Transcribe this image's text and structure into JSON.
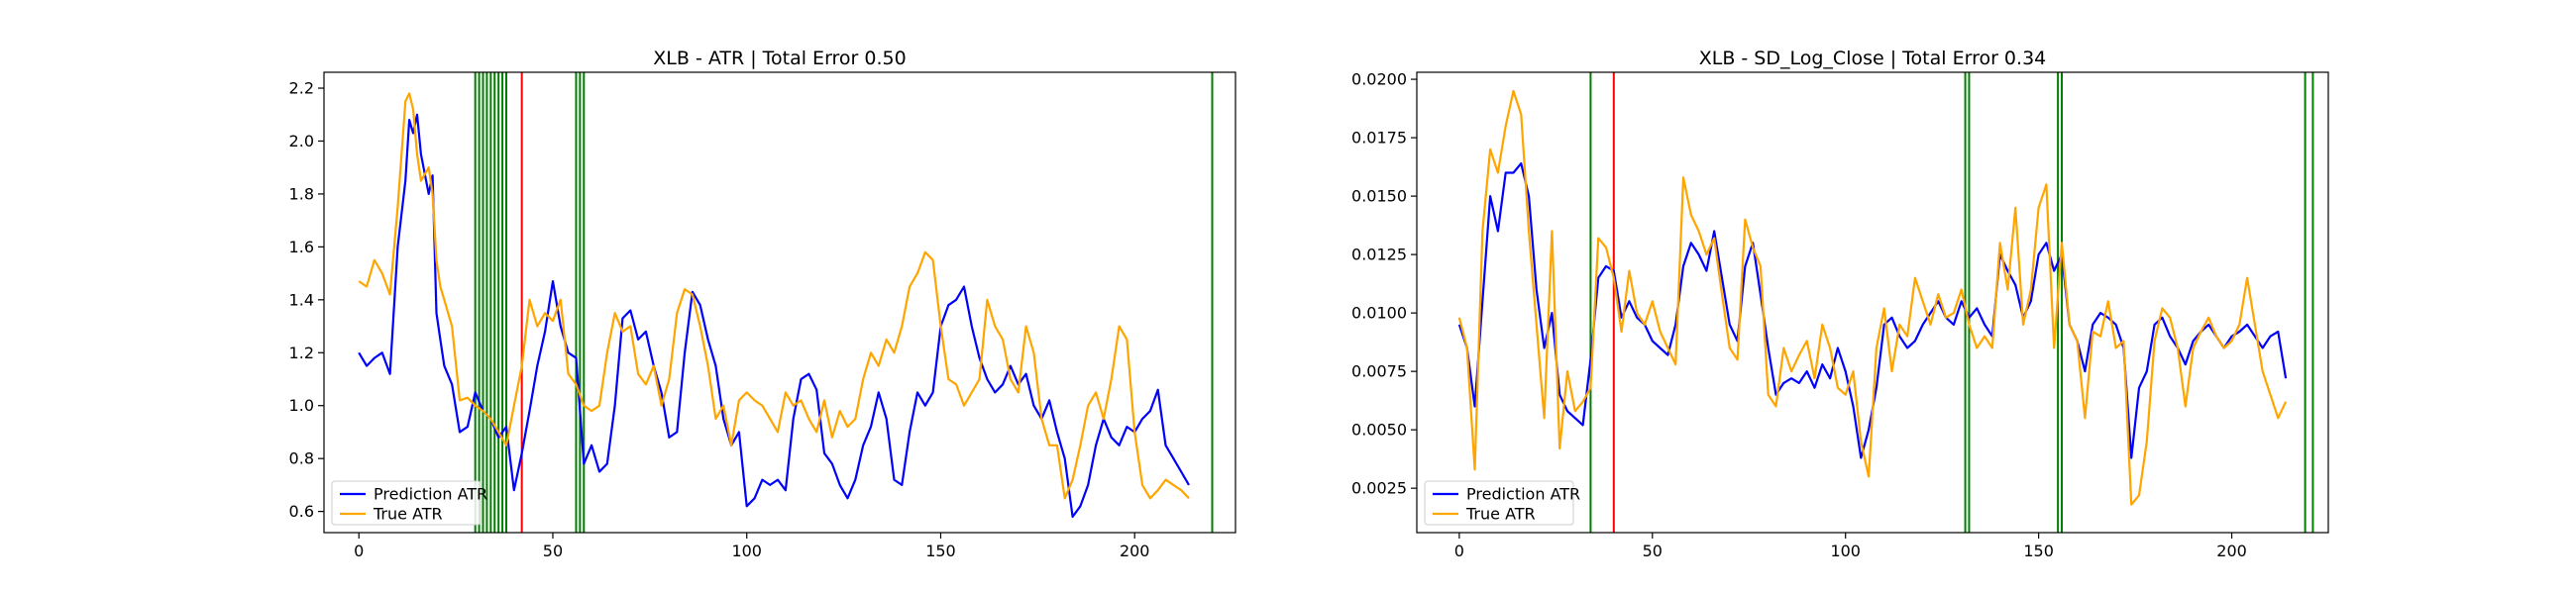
{
  "chart_data": [
    {
      "type": "line",
      "title": "XLB - ATR | Total Error 0.50",
      "xlabel": "",
      "ylabel": "",
      "xlim": [
        -9,
        226
      ],
      "ylim": [
        0.52,
        2.26
      ],
      "xticks": [
        0,
        50,
        100,
        150,
        200
      ],
      "xtick_labels": [
        "0",
        "50",
        "100",
        "150",
        "200"
      ],
      "yticks": [
        0.6,
        0.8,
        1.0,
        1.2,
        1.4,
        1.6,
        1.8,
        2.0,
        2.2
      ],
      "ytick_labels": [
        "0.6",
        "0.8",
        "1.0",
        "1.2",
        "1.4",
        "1.6",
        "1.8",
        "2.0",
        "2.2"
      ],
      "grid": false,
      "legend_position": "lower-left",
      "series": [
        {
          "name": "Prediction ATR",
          "color": "#0000ff",
          "x": [
            0,
            2,
            4,
            6,
            8,
            10,
            12,
            13,
            14,
            15,
            16,
            18,
            19,
            20,
            21,
            22,
            24,
            26,
            28,
            30,
            32,
            34,
            36,
            38,
            40,
            42,
            44,
            46,
            48,
            50,
            52,
            54,
            56,
            58,
            60,
            62,
            64,
            66,
            68,
            70,
            72,
            74,
            76,
            78,
            80,
            82,
            84,
            86,
            88,
            90,
            92,
            94,
            96,
            98,
            100,
            102,
            104,
            106,
            108,
            110,
            112,
            114,
            116,
            118,
            120,
            122,
            124,
            126,
            128,
            130,
            132,
            134,
            136,
            138,
            140,
            142,
            144,
            146,
            148,
            150,
            152,
            154,
            156,
            158,
            160,
            162,
            164,
            166,
            168,
            170,
            172,
            174,
            176,
            178,
            180,
            182,
            184,
            186,
            188,
            190,
            192,
            194,
            196,
            198,
            200,
            202,
            204,
            206,
            208,
            210,
            212,
            214
          ],
          "values": [
            1.2,
            1.15,
            1.18,
            1.2,
            1.12,
            1.6,
            1.85,
            2.08,
            2.03,
            2.1,
            1.95,
            1.8,
            1.87,
            1.35,
            1.25,
            1.15,
            1.08,
            0.9,
            0.92,
            1.05,
            0.98,
            0.95,
            0.88,
            0.92,
            0.68,
            0.82,
            0.98,
            1.15,
            1.28,
            1.47,
            1.3,
            1.2,
            1.18,
            0.78,
            0.85,
            0.75,
            0.78,
            1.0,
            1.33,
            1.36,
            1.25,
            1.28,
            1.15,
            1.05,
            0.88,
            0.9,
            1.2,
            1.43,
            1.38,
            1.25,
            1.15,
            0.95,
            0.85,
            0.9,
            0.62,
            0.65,
            0.72,
            0.7,
            0.72,
            0.68,
            0.95,
            1.1,
            1.12,
            1.06,
            0.82,
            0.78,
            0.7,
            0.65,
            0.72,
            0.85,
            0.92,
            1.05,
            0.95,
            0.72,
            0.7,
            0.9,
            1.05,
            1.0,
            1.05,
            1.3,
            1.38,
            1.4,
            1.45,
            1.3,
            1.18,
            1.1,
            1.05,
            1.08,
            1.15,
            1.08,
            1.12,
            1.0,
            0.95,
            1.02,
            0.9,
            0.8,
            0.58,
            0.62,
            0.7,
            0.85,
            0.95,
            0.88,
            0.85,
            0.92,
            0.9,
            0.95,
            0.98,
            1.06,
            0.85,
            0.8,
            0.75,
            0.7
          ]
        },
        {
          "name": "True ATR",
          "color": "#ffa500",
          "x": [
            0,
            2,
            4,
            6,
            8,
            10,
            12,
            13,
            14,
            15,
            16,
            18,
            19,
            20,
            21,
            22,
            24,
            26,
            28,
            30,
            32,
            34,
            36,
            38,
            40,
            42,
            44,
            46,
            48,
            50,
            52,
            54,
            56,
            58,
            60,
            62,
            64,
            66,
            68,
            70,
            72,
            74,
            76,
            78,
            80,
            82,
            84,
            86,
            88,
            90,
            92,
            94,
            96,
            98,
            100,
            102,
            104,
            106,
            108,
            110,
            112,
            114,
            116,
            118,
            120,
            122,
            124,
            126,
            128,
            130,
            132,
            134,
            136,
            138,
            140,
            142,
            144,
            146,
            148,
            150,
            152,
            154,
            156,
            158,
            160,
            162,
            164,
            166,
            168,
            170,
            172,
            174,
            176,
            178,
            180,
            182,
            184,
            186,
            188,
            190,
            192,
            194,
            196,
            198,
            200,
            202,
            204,
            206,
            208,
            210,
            212,
            214
          ],
          "values": [
            1.47,
            1.45,
            1.55,
            1.5,
            1.42,
            1.75,
            2.15,
            2.18,
            2.12,
            1.95,
            1.85,
            1.9,
            1.8,
            1.55,
            1.45,
            1.4,
            1.3,
            1.02,
            1.03,
            1.0,
            0.98,
            0.95,
            0.9,
            0.85,
            1.0,
            1.15,
            1.4,
            1.3,
            1.35,
            1.32,
            1.4,
            1.12,
            1.08,
            1.0,
            0.98,
            1.0,
            1.2,
            1.35,
            1.28,
            1.3,
            1.12,
            1.08,
            1.15,
            1.0,
            1.1,
            1.35,
            1.44,
            1.42,
            1.3,
            1.15,
            0.95,
            1.0,
            0.85,
            1.02,
            1.05,
            1.02,
            1.0,
            0.95,
            0.9,
            1.05,
            1.0,
            1.02,
            0.95,
            0.9,
            1.02,
            0.88,
            0.98,
            0.92,
            0.95,
            1.1,
            1.2,
            1.15,
            1.25,
            1.2,
            1.3,
            1.45,
            1.5,
            1.58,
            1.55,
            1.3,
            1.1,
            1.08,
            1.0,
            1.05,
            1.1,
            1.4,
            1.3,
            1.25,
            1.1,
            1.05,
            1.3,
            1.2,
            0.95,
            0.85,
            0.85,
            0.65,
            0.72,
            0.85,
            1.0,
            1.05,
            0.95,
            1.1,
            1.3,
            1.25,
            0.9,
            0.7,
            0.65,
            0.68,
            0.72,
            0.7,
            0.68,
            0.65
          ]
        }
      ],
      "vlines": [
        {
          "x": 30,
          "color": "#008000"
        },
        {
          "x": 31,
          "color": "#008000"
        },
        {
          "x": 32,
          "color": "#008000"
        },
        {
          "x": 33,
          "color": "#008000"
        },
        {
          "x": 34,
          "color": "#008000"
        },
        {
          "x": 35,
          "color": "#008000"
        },
        {
          "x": 36,
          "color": "#008000"
        },
        {
          "x": 37,
          "color": "#008000"
        },
        {
          "x": 38,
          "color": "#008000"
        },
        {
          "x": 42,
          "color": "#ff0000"
        },
        {
          "x": 56,
          "color": "#008000"
        },
        {
          "x": 57,
          "color": "#008000"
        },
        {
          "x": 58,
          "color": "#008000"
        },
        {
          "x": 220,
          "color": "#008000"
        }
      ]
    },
    {
      "type": "line",
      "title": "XLB - SD_Log_Close | Total Error 0.34",
      "xlabel": "",
      "ylabel": "",
      "xlim": [
        -11,
        225
      ],
      "ylim": [
        0.0006,
        0.0203
      ],
      "xticks": [
        0,
        50,
        100,
        150,
        200
      ],
      "xtick_labels": [
        "0",
        "50",
        "100",
        "150",
        "200"
      ],
      "yticks": [
        0.0025,
        0.005,
        0.0075,
        0.01,
        0.0125,
        0.015,
        0.0175,
        0.02
      ],
      "ytick_labels": [
        "0.0025",
        "0.0050",
        "0.0075",
        "0.0100",
        "0.0125",
        "0.0150",
        "0.0175",
        "0.0200"
      ],
      "grid": false,
      "legend_position": "lower-left",
      "series": [
        {
          "name": "Prediction ATR",
          "color": "#0000ff",
          "x": [
            0,
            2,
            4,
            6,
            8,
            10,
            12,
            14,
            16,
            18,
            20,
            22,
            24,
            26,
            28,
            30,
            32,
            34,
            36,
            38,
            40,
            42,
            44,
            46,
            48,
            50,
            52,
            54,
            56,
            58,
            60,
            62,
            64,
            66,
            68,
            70,
            72,
            74,
            76,
            78,
            80,
            82,
            84,
            86,
            88,
            90,
            92,
            94,
            96,
            98,
            100,
            102,
            104,
            106,
            108,
            110,
            112,
            114,
            116,
            118,
            120,
            122,
            124,
            126,
            128,
            130,
            132,
            134,
            136,
            138,
            140,
            142,
            144,
            146,
            148,
            150,
            152,
            154,
            156,
            158,
            160,
            162,
            164,
            166,
            168,
            170,
            172,
            174,
            176,
            178,
            180,
            182,
            184,
            186,
            188,
            190,
            192,
            194,
            196,
            198,
            200,
            202,
            204,
            206,
            208,
            210,
            212,
            214
          ],
          "values": [
            0.0095,
            0.0085,
            0.006,
            0.0105,
            0.015,
            0.0135,
            0.016,
            0.016,
            0.0164,
            0.015,
            0.011,
            0.0085,
            0.01,
            0.0065,
            0.0058,
            0.0055,
            0.0052,
            0.008,
            0.0115,
            0.012,
            0.0118,
            0.0098,
            0.0105,
            0.0098,
            0.0095,
            0.0088,
            0.0085,
            0.0082,
            0.0095,
            0.012,
            0.013,
            0.0125,
            0.0118,
            0.0135,
            0.0115,
            0.0095,
            0.0088,
            0.012,
            0.013,
            0.0108,
            0.0085,
            0.0065,
            0.007,
            0.0072,
            0.007,
            0.0075,
            0.0068,
            0.0078,
            0.0072,
            0.0085,
            0.0075,
            0.006,
            0.0038,
            0.005,
            0.0068,
            0.0095,
            0.0098,
            0.009,
            0.0085,
            0.0088,
            0.0095,
            0.01,
            0.0105,
            0.0098,
            0.0095,
            0.0105,
            0.0098,
            0.0102,
            0.0095,
            0.009,
            0.0125,
            0.0118,
            0.0112,
            0.0098,
            0.0105,
            0.0125,
            0.013,
            0.0118,
            0.0125,
            0.0095,
            0.0088,
            0.0075,
            0.0095,
            0.01,
            0.0098,
            0.0095,
            0.0085,
            0.0038,
            0.0068,
            0.0075,
            0.0095,
            0.0098,
            0.009,
            0.0085,
            0.0078,
            0.0088,
            0.0092,
            0.0095,
            0.009,
            0.0085,
            0.009,
            0.0092,
            0.0095,
            0.009,
            0.0085,
            0.009,
            0.0092,
            0.0072
          ]
        },
        {
          "name": "True ATR",
          "color": "#ffa500",
          "x": [
            0,
            2,
            4,
            6,
            8,
            10,
            12,
            14,
            16,
            18,
            20,
            22,
            24,
            26,
            28,
            30,
            32,
            34,
            36,
            38,
            40,
            42,
            44,
            46,
            48,
            50,
            52,
            54,
            56,
            58,
            60,
            62,
            64,
            66,
            68,
            70,
            72,
            74,
            76,
            78,
            80,
            82,
            84,
            86,
            88,
            90,
            92,
            94,
            96,
            98,
            100,
            102,
            104,
            106,
            108,
            110,
            112,
            114,
            116,
            118,
            120,
            122,
            124,
            126,
            128,
            130,
            132,
            134,
            136,
            138,
            140,
            142,
            144,
            146,
            148,
            150,
            152,
            154,
            156,
            158,
            160,
            162,
            164,
            166,
            168,
            170,
            172,
            174,
            176,
            178,
            180,
            182,
            184,
            186,
            188,
            190,
            192,
            194,
            196,
            198,
            200,
            202,
            204,
            206,
            208,
            210,
            212,
            214
          ],
          "values": [
            0.0098,
            0.0085,
            0.0033,
            0.0135,
            0.017,
            0.016,
            0.018,
            0.0195,
            0.0185,
            0.0135,
            0.0095,
            0.0055,
            0.0135,
            0.0042,
            0.0075,
            0.0058,
            0.0062,
            0.0068,
            0.0132,
            0.0128,
            0.0115,
            0.0092,
            0.0118,
            0.01,
            0.0095,
            0.0105,
            0.0092,
            0.0085,
            0.0078,
            0.0158,
            0.0142,
            0.0135,
            0.0125,
            0.0132,
            0.0108,
            0.0085,
            0.008,
            0.014,
            0.0128,
            0.012,
            0.0065,
            0.006,
            0.0085,
            0.0075,
            0.0082,
            0.0088,
            0.0072,
            0.0095,
            0.0085,
            0.0068,
            0.0065,
            0.0075,
            0.0045,
            0.003,
            0.0085,
            0.0102,
            0.0075,
            0.0095,
            0.009,
            0.0115,
            0.0105,
            0.0095,
            0.0108,
            0.0098,
            0.01,
            0.011,
            0.0095,
            0.0085,
            0.009,
            0.0085,
            0.013,
            0.011,
            0.0145,
            0.0095,
            0.011,
            0.0145,
            0.0155,
            0.0085,
            0.013,
            0.0095,
            0.0088,
            0.0055,
            0.0092,
            0.009,
            0.0105,
            0.0085,
            0.0088,
            0.0018,
            0.0022,
            0.0045,
            0.0088,
            0.0102,
            0.0098,
            0.0085,
            0.006,
            0.0085,
            0.0092,
            0.0098,
            0.009,
            0.0085,
            0.0088,
            0.0095,
            0.0115,
            0.0095,
            0.0075,
            0.0065,
            0.0055,
            0.0062
          ]
        }
      ],
      "vlines": [
        {
          "x": 34,
          "color": "#008000"
        },
        {
          "x": 40,
          "color": "#ff0000"
        },
        {
          "x": 131,
          "color": "#008000"
        },
        {
          "x": 132,
          "color": "#008000"
        },
        {
          "x": 155,
          "color": "#008000"
        },
        {
          "x": 156,
          "color": "#008000"
        },
        {
          "x": 219,
          "color": "#008000"
        },
        {
          "x": 221,
          "color": "#008000"
        }
      ]
    }
  ]
}
